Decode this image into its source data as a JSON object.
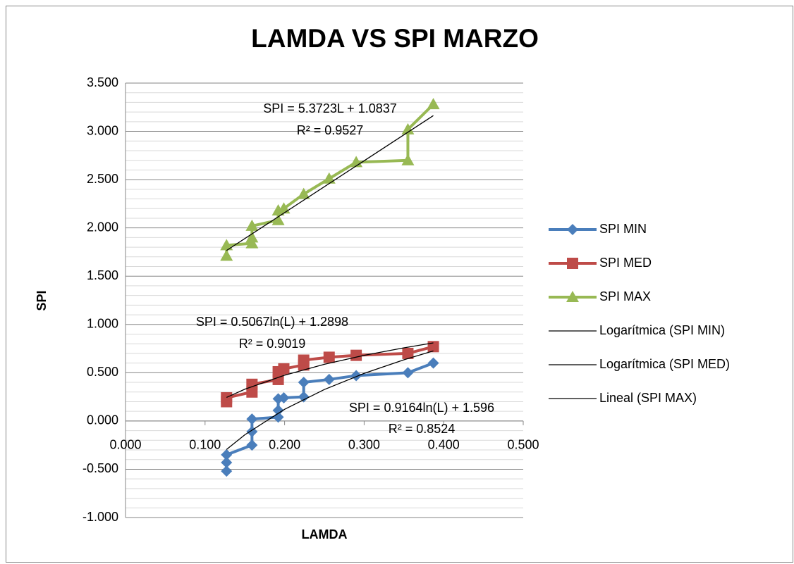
{
  "chart_data": {
    "type": "scatter",
    "title": "LAMDA VS SPI MARZO",
    "x_label": "LAMDA",
    "y_label": "SPI",
    "xlim": [
      0,
      0.5
    ],
    "xticks": [
      {
        "value": 0,
        "label": "0.000"
      },
      {
        "value": 0.1,
        "label": "0.100"
      },
      {
        "value": 0.2,
        "label": "0.200"
      },
      {
        "value": 0.3,
        "label": "0.300"
      },
      {
        "value": 0.4,
        "label": "0.400"
      },
      {
        "value": 0.5,
        "label": "0.500"
      }
    ],
    "ylim": [
      -1,
      3.5
    ],
    "yticks": [
      {
        "value": -1,
        "label": "-1.000"
      },
      {
        "value": -0.5,
        "label": "-0.500"
      },
      {
        "value": 0,
        "label": "0.000"
      },
      {
        "value": 0.5,
        "label": "0.500"
      },
      {
        "value": 1,
        "label": "1.000"
      },
      {
        "value": 1.5,
        "label": "1.500"
      },
      {
        "value": 2,
        "label": "2.000"
      },
      {
        "value": 2.5,
        "label": "2.500"
      },
      {
        "value": 3,
        "label": "3.000"
      },
      {
        "value": 3.5,
        "label": "3.500"
      }
    ],
    "grid": true,
    "legend": "right",
    "series": [
      {
        "name": "SPI MIN",
        "color": "#4a7ebb",
        "marker": "diamond",
        "x": [
          0.127,
          0.127,
          0.127,
          0.159,
          0.159,
          0.159,
          0.192,
          0.192,
          0.192,
          0.199,
          0.224,
          0.224,
          0.256,
          0.29,
          0.355,
          0.387
        ],
        "values": [
          -0.52,
          -0.43,
          -0.35,
          -0.25,
          -0.11,
          0.02,
          0.04,
          0.11,
          0.23,
          0.24,
          0.25,
          0.4,
          0.43,
          0.47,
          0.5,
          0.6
        ]
      },
      {
        "name": "SPI MED",
        "color": "#be4b48",
        "marker": "square",
        "x": [
          0.127,
          0.127,
          0.159,
          0.159,
          0.192,
          0.192,
          0.199,
          0.224,
          0.224,
          0.256,
          0.29,
          0.355,
          0.387
        ],
        "values": [
          0.2,
          0.24,
          0.3,
          0.38,
          0.43,
          0.51,
          0.54,
          0.58,
          0.63,
          0.66,
          0.68,
          0.7,
          0.77
        ]
      },
      {
        "name": "SPI MAX",
        "color": "#98b954",
        "marker": "triangle",
        "x": [
          0.127,
          0.127,
          0.159,
          0.159,
          0.159,
          0.192,
          0.192,
          0.199,
          0.224,
          0.256,
          0.29,
          0.355,
          0.355,
          0.387
        ],
        "values": [
          1.71,
          1.82,
          1.84,
          1.9,
          2.02,
          2.08,
          2.18,
          2.2,
          2.35,
          2.51,
          2.68,
          2.7,
          3.02,
          3.28
        ]
      }
    ],
    "trendlines": [
      {
        "name": "Logarítmica (SPI MIN)",
        "color": "#000000",
        "x": [
          0.127,
          0.15,
          0.2,
          0.25,
          0.3,
          0.35,
          0.387
        ],
        "values": [
          -0.295,
          -0.143,
          0.121,
          0.326,
          0.493,
          0.634,
          0.726
        ]
      },
      {
        "name": "Logarítmica (SPI MED)",
        "color": "#000000",
        "x": [
          0.127,
          0.15,
          0.2,
          0.25,
          0.3,
          0.35,
          0.387
        ],
        "values": [
          0.244,
          0.329,
          0.474,
          0.587,
          0.68,
          0.758,
          0.809
        ]
      },
      {
        "name": "Lineal (SPI MAX)",
        "color": "#000000",
        "x": [
          0.127,
          0.387
        ],
        "values": [
          1.766,
          3.163
        ]
      }
    ],
    "annotations": [
      "SPI = 5.3723L + 1.0837",
      "R² = 0.9527",
      "SPI = 0.5067ln(L) + 1.2898",
      "R² = 0.9019",
      "SPI = 0.9164ln(L) + 1.596",
      "R² = 0.8524"
    ]
  }
}
